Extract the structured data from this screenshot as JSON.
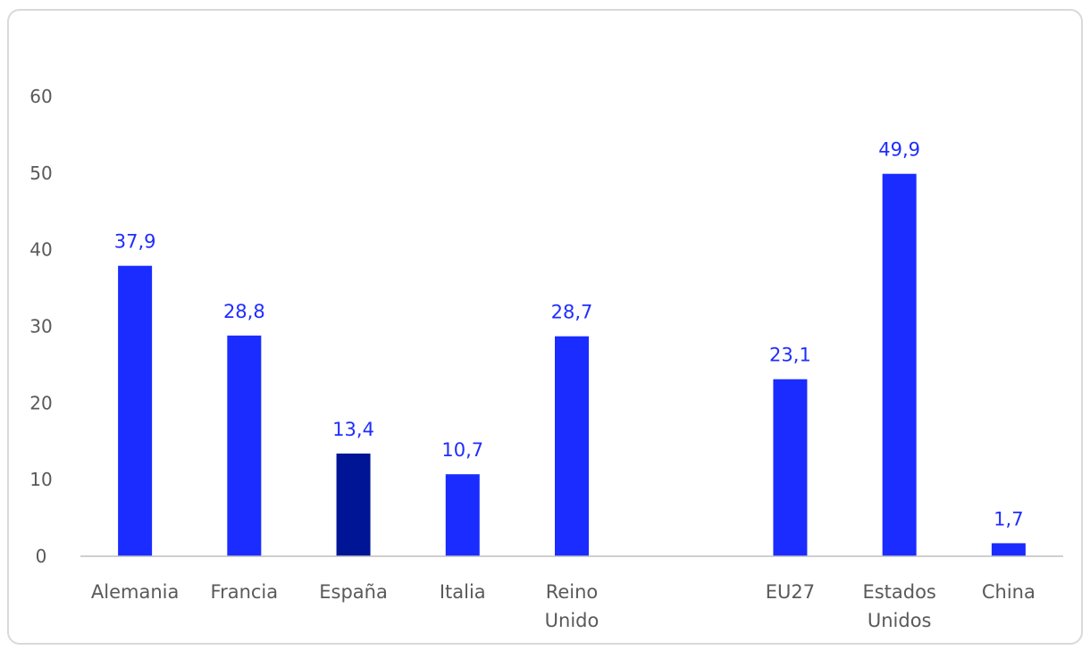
{
  "chart_data": {
    "type": "bar",
    "title": "",
    "xlabel": "",
    "ylabel": "",
    "ylim": [
      0,
      60
    ],
    "yticks": [
      "0",
      "10",
      "20",
      "30",
      "40",
      "50",
      "60"
    ],
    "grid": false,
    "legend": "none",
    "categories": [
      "Alemania",
      "Francia",
      "España",
      "Italia",
      "Reino Unido",
      "",
      "EU27",
      "Estados Unidos",
      "China"
    ],
    "category_lines": [
      [
        "Alemania"
      ],
      [
        "Francia"
      ],
      [
        "España"
      ],
      [
        "Italia"
      ],
      [
        "Reino",
        "Unido"
      ],
      [],
      [
        "EU27"
      ],
      [
        "Estados",
        "Unidos"
      ],
      [
        "China"
      ]
    ],
    "values": [
      37.9,
      28.8,
      13.4,
      10.7,
      28.7,
      null,
      23.1,
      49.9,
      1.7
    ],
    "data_labels": [
      "37,9",
      "28,8",
      "13,4",
      "10,7",
      "28,7",
      "",
      "23,1",
      "49,9",
      "1,7"
    ],
    "bar_colors": [
      "#1a2cff",
      "#1a2cff",
      "#001496",
      "#1a2cff",
      "#1a2cff",
      "",
      "#1a2cff",
      "#1a2cff",
      "#1a2cff"
    ],
    "colors": {
      "default": "#1a2cff",
      "highlight": "#001496",
      "label": "#1f2dff",
      "axis_text": "#595959",
      "axis_line": "#bfbfbf"
    }
  }
}
